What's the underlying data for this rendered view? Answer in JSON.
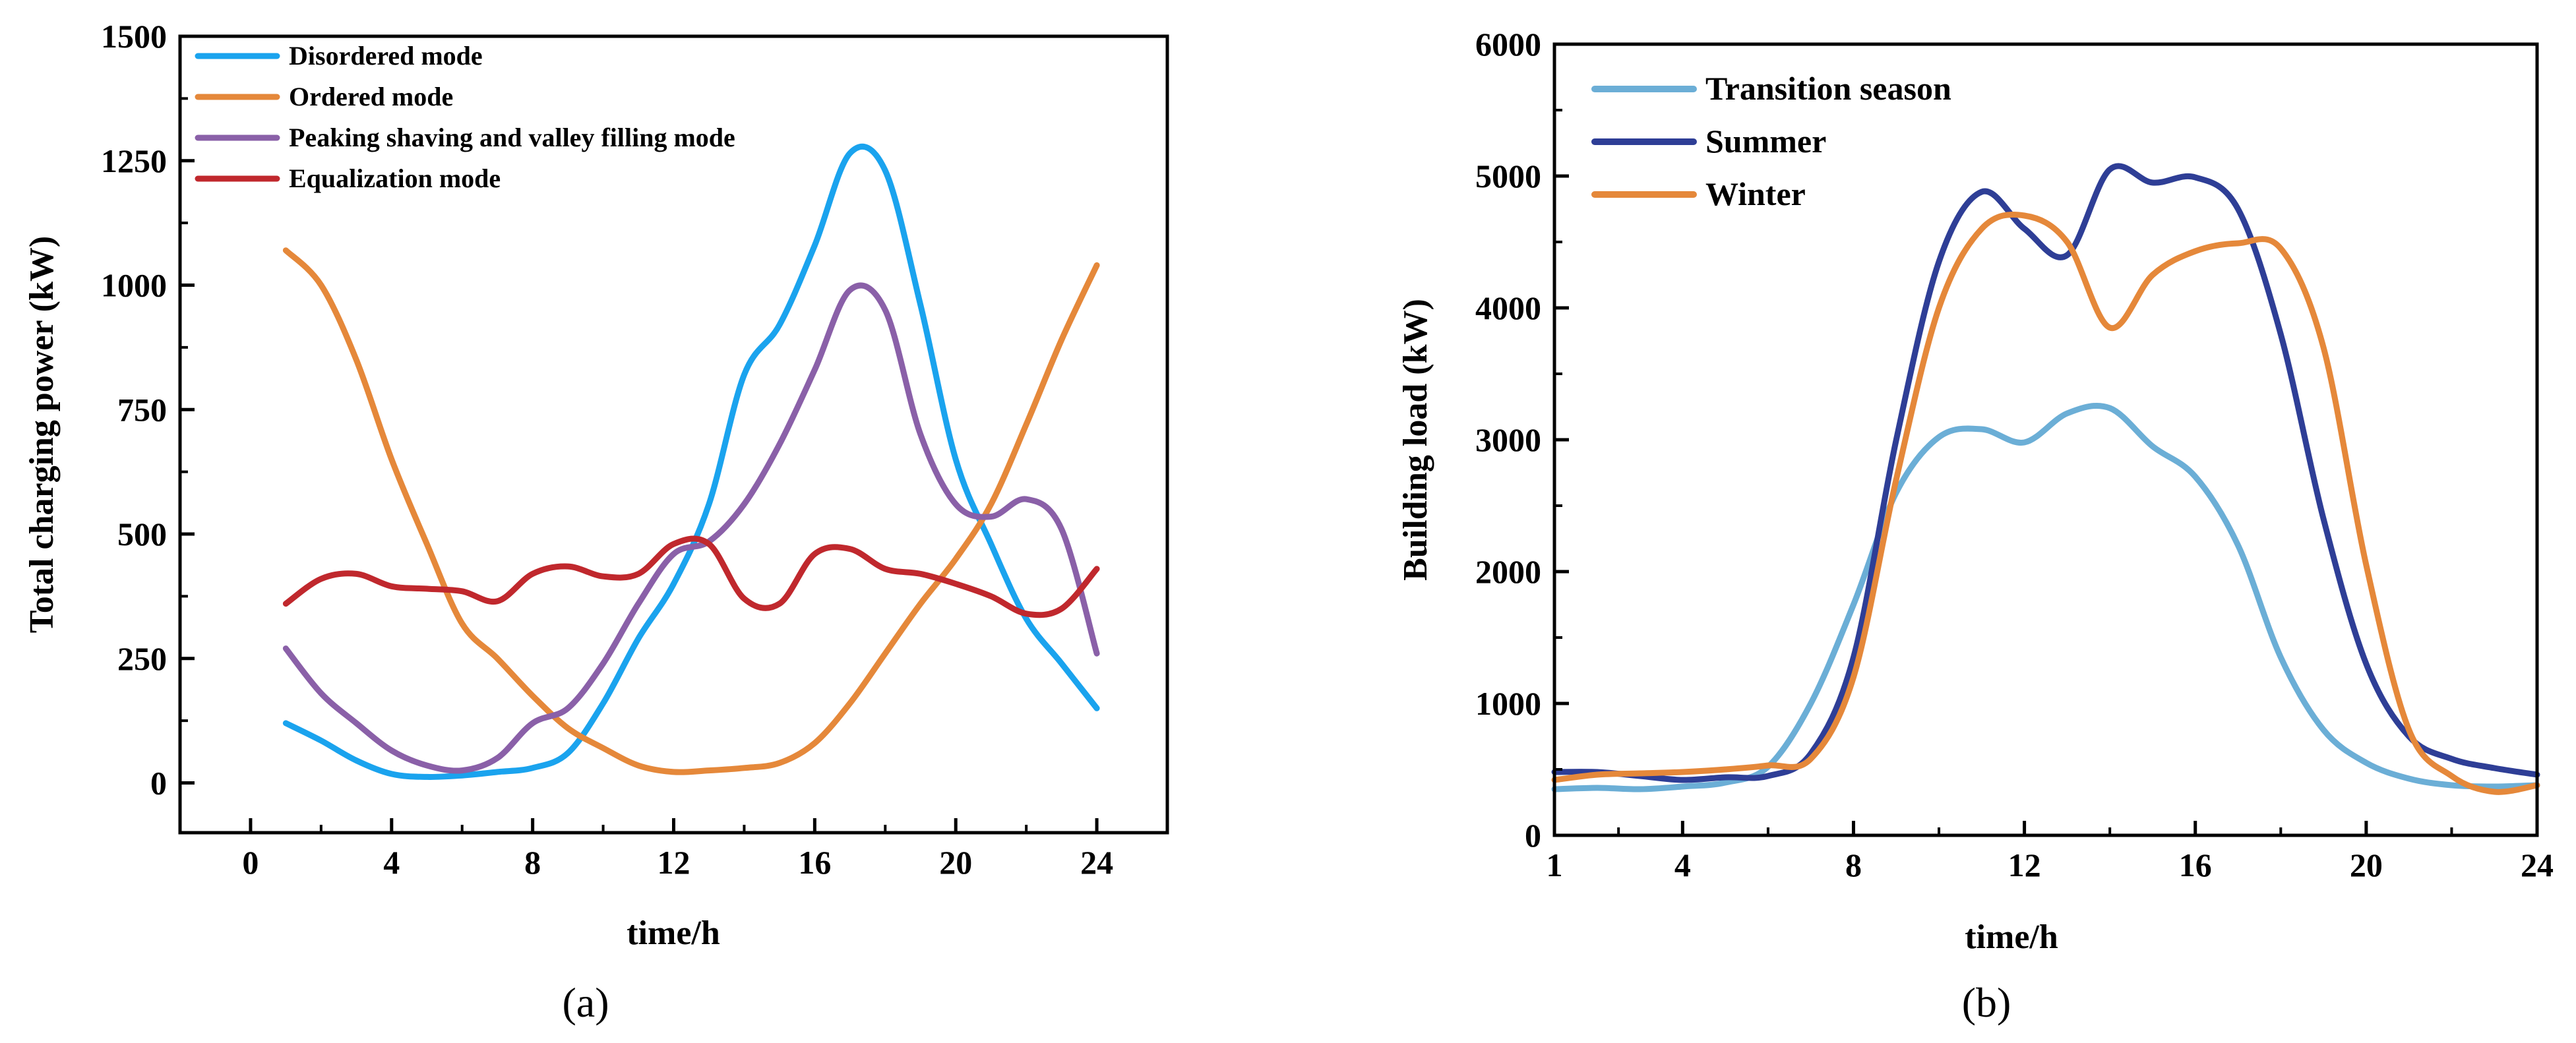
{
  "chart_data": [
    {
      "type": "line",
      "panel_label": "(a)",
      "xlabel": "time/h",
      "ylabel": "Total charging power (kW)",
      "xlim": [
        -2,
        26
      ],
      "ylim": [
        -100,
        1500
      ],
      "xticks": [
        0,
        4,
        8,
        12,
        16,
        20,
        24
      ],
      "yticks": [
        0,
        250,
        500,
        750,
        1000,
        1250,
        1500
      ],
      "legend_position": "top-left",
      "series": [
        {
          "name": "Disordered mode",
          "color": "#1AA3EE",
          "x": [
            1,
            2,
            3,
            4,
            5,
            6,
            7,
            8,
            9,
            10,
            11,
            12,
            13,
            14,
            15,
            16,
            17,
            18,
            19,
            20,
            21,
            22,
            23,
            24
          ],
          "values": [
            120,
            85,
            45,
            18,
            12,
            15,
            22,
            30,
            60,
            160,
            290,
            400,
            560,
            820,
            920,
            1080,
            1265,
            1230,
            960,
            650,
            480,
            330,
            240,
            150
          ]
        },
        {
          "name": "Ordered mode",
          "color": "#E5883A",
          "x": [
            1,
            2,
            3,
            4,
            5,
            6,
            7,
            8,
            9,
            10,
            11,
            12,
            13,
            14,
            15,
            16,
            17,
            18,
            19,
            20,
            21,
            22,
            23,
            24
          ],
          "values": [
            1070,
            1000,
            850,
            650,
            480,
            320,
            250,
            175,
            110,
            70,
            35,
            22,
            25,
            30,
            40,
            80,
            160,
            260,
            360,
            450,
            560,
            720,
            890,
            1040
          ]
        },
        {
          "name": "Peaking shaving and valley filling mode",
          "color": "#8A60A8",
          "x": [
            1,
            2,
            3,
            4,
            5,
            6,
            7,
            8,
            9,
            10,
            11,
            12,
            13,
            14,
            15,
            16,
            17,
            18,
            19,
            20,
            21,
            22,
            23,
            24
          ],
          "values": [
            270,
            180,
            120,
            65,
            35,
            25,
            50,
            120,
            150,
            240,
            360,
            460,
            485,
            560,
            680,
            830,
            990,
            950,
            700,
            560,
            535,
            570,
            510,
            260
          ]
        },
        {
          "name": "Equalization mode",
          "color": "#C0282D",
          "x": [
            1,
            2,
            3,
            4,
            5,
            6,
            7,
            8,
            9,
            10,
            11,
            12,
            13,
            14,
            15,
            16,
            17,
            18,
            19,
            20,
            21,
            22,
            23,
            24
          ],
          "values": [
            360,
            410,
            420,
            395,
            390,
            385,
            365,
            420,
            435,
            415,
            420,
            480,
            480,
            370,
            360,
            460,
            470,
            430,
            420,
            400,
            375,
            340,
            350,
            430
          ]
        }
      ]
    },
    {
      "type": "line",
      "panel_label": "(b)",
      "xlabel": "time/h",
      "ylabel": "Building load (kW)",
      "xlim": [
        1,
        24
      ],
      "ylim": [
        0,
        6000
      ],
      "xticks": [
        1,
        4,
        8,
        12,
        16,
        20,
        24
      ],
      "yticks": [
        0,
        1000,
        2000,
        3000,
        4000,
        5000,
        6000
      ],
      "legend_position": "top-left",
      "series": [
        {
          "name": "Transition season",
          "color": "#6BAED6",
          "x": [
            1,
            2,
            3,
            4,
            5,
            6,
            7,
            8,
            9,
            10,
            11,
            12,
            13,
            14,
            15,
            16,
            17,
            18,
            19,
            20,
            21,
            22,
            23,
            24
          ],
          "values": [
            350,
            360,
            350,
            370,
            400,
            520,
            1000,
            1750,
            2600,
            3020,
            3080,
            2980,
            3200,
            3240,
            2950,
            2720,
            2200,
            1350,
            800,
            550,
            430,
            380,
            370,
            380
          ]
        },
        {
          "name": "Summer",
          "color": "#2E3E96",
          "x": [
            1,
            2,
            3,
            4,
            5,
            6,
            7,
            8,
            9,
            10,
            11,
            12,
            13,
            14,
            15,
            16,
            17,
            18,
            19,
            20,
            21,
            22,
            23,
            24
          ],
          "values": [
            480,
            480,
            450,
            420,
            440,
            450,
            620,
            1350,
            3000,
            4350,
            4880,
            4600,
            4400,
            5050,
            4950,
            4990,
            4750,
            3800,
            2400,
            1300,
            750,
            580,
            510,
            460
          ]
        },
        {
          "name": "Winter",
          "color": "#E5883A",
          "x": [
            1,
            2,
            3,
            4,
            5,
            6,
            7,
            8,
            9,
            10,
            11,
            12,
            13,
            14,
            15,
            16,
            17,
            18,
            19,
            20,
            21,
            22,
            23,
            24
          ],
          "values": [
            420,
            460,
            470,
            480,
            500,
            530,
            580,
            1200,
            2700,
            4000,
            4600,
            4700,
            4500,
            3850,
            4250,
            4430,
            4490,
            4450,
            3700,
            2050,
            800,
            450,
            330,
            380
          ]
        }
      ]
    }
  ]
}
